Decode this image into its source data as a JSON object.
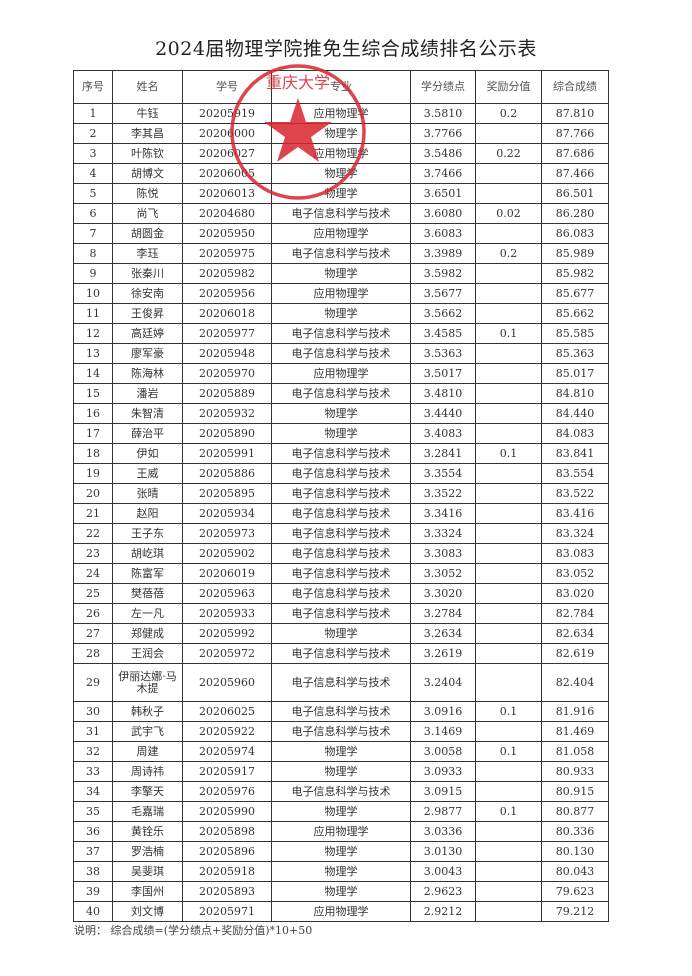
{
  "title": "2024届物理学院推免生综合成绩排名公示表",
  "headers": [
    "序号",
    "姓名",
    "学号",
    "专业",
    "学分绩点",
    "奖励分值",
    "综合成绩"
  ],
  "rows": [
    [
      "1",
      "牛钰",
      "20205919",
      "应用物理学",
      "3.5810",
      "0.2",
      "87.810"
    ],
    [
      "2",
      "李其昌",
      "20206000",
      "物理学",
      "3.7766",
      "",
      "87.766"
    ],
    [
      "3",
      "叶陈钦",
      "20206027",
      "应用物理学",
      "3.5486",
      "0.22",
      "87.686"
    ],
    [
      "4",
      "胡博文",
      "20206005",
      "物理学",
      "3.7466",
      "",
      "87.466"
    ],
    [
      "5",
      "陈悦",
      "20206013",
      "物理学",
      "3.6501",
      "",
      "86.501"
    ],
    [
      "6",
      "尚飞",
      "20204680",
      "电子信息科学与技术",
      "3.6080",
      "0.02",
      "86.280"
    ],
    [
      "7",
      "胡圆金",
      "20205950",
      "应用物理学",
      "3.6083",
      "",
      "86.083"
    ],
    [
      "8",
      "李珏",
      "20205975",
      "电子信息科学与技术",
      "3.3989",
      "0.2",
      "85.989"
    ],
    [
      "9",
      "张秦川",
      "20205982",
      "物理学",
      "3.5982",
      "",
      "85.982"
    ],
    [
      "10",
      "徐安南",
      "20205956",
      "应用物理学",
      "3.5677",
      "",
      "85.677"
    ],
    [
      "11",
      "王俊昇",
      "20206018",
      "物理学",
      "3.5662",
      "",
      "85.662"
    ],
    [
      "12",
      "高廷婷",
      "20205977",
      "电子信息科学与技术",
      "3.4585",
      "0.1",
      "85.585"
    ],
    [
      "13",
      "廖军豪",
      "20205948",
      "电子信息科学与技术",
      "3.5363",
      "",
      "85.363"
    ],
    [
      "14",
      "陈海林",
      "20205970",
      "应用物理学",
      "3.5017",
      "",
      "85.017"
    ],
    [
      "15",
      "潘岩",
      "20205889",
      "电子信息科学与技术",
      "3.4810",
      "",
      "84.810"
    ],
    [
      "16",
      "朱智清",
      "20205932",
      "物理学",
      "3.4440",
      "",
      "84.440"
    ],
    [
      "17",
      "薛治平",
      "20205890",
      "物理学",
      "3.4083",
      "",
      "84.083"
    ],
    [
      "18",
      "伊如",
      "20205991",
      "电子信息科学与技术",
      "3.2841",
      "0.1",
      "83.841"
    ],
    [
      "19",
      "王威",
      "20205886",
      "电子信息科学与技术",
      "3.3554",
      "",
      "83.554"
    ],
    [
      "20",
      "张晴",
      "20205895",
      "电子信息科学与技术",
      "3.3522",
      "",
      "83.522"
    ],
    [
      "21",
      "赵阳",
      "20205934",
      "电子信息科学与技术",
      "3.3416",
      "",
      "83.416"
    ],
    [
      "22",
      "王子东",
      "20205973",
      "电子信息科学与技术",
      "3.3324",
      "",
      "83.324"
    ],
    [
      "23",
      "胡屹琪",
      "20205902",
      "电子信息科学与技术",
      "3.3083",
      "",
      "83.083"
    ],
    [
      "24",
      "陈富军",
      "20206019",
      "电子信息科学与技术",
      "3.3052",
      "",
      "83.052"
    ],
    [
      "25",
      "樊蓓蓓",
      "20205963",
      "电子信息科学与技术",
      "3.3020",
      "",
      "83.020"
    ],
    [
      "26",
      "左一凡",
      "20205933",
      "电子信息科学与技术",
      "3.2784",
      "",
      "82.784"
    ],
    [
      "27",
      "郑健成",
      "20205992",
      "物理学",
      "3.2634",
      "",
      "82.634"
    ],
    [
      "28",
      "王润会",
      "20205972",
      "电子信息科学与技术",
      "3.2619",
      "",
      "82.619"
    ],
    [
      "29",
      "伊丽达娜·马木提",
      "20205960",
      "电子信息科学与技术",
      "3.2404",
      "",
      "82.404"
    ],
    [
      "30",
      "韩秋子",
      "20206025",
      "电子信息科学与技术",
      "3.0916",
      "0.1",
      "81.916"
    ],
    [
      "31",
      "武宇飞",
      "20205922",
      "电子信息科学与技术",
      "3.1469",
      "",
      "81.469"
    ],
    [
      "32",
      "周建",
      "20205974",
      "物理学",
      "3.0058",
      "0.1",
      "81.058"
    ],
    [
      "33",
      "周诗祎",
      "20205917",
      "物理学",
      "3.0933",
      "",
      "80.933"
    ],
    [
      "34",
      "李擎天",
      "20205976",
      "电子信息科学与技术",
      "3.0915",
      "",
      "80.915"
    ],
    [
      "35",
      "毛嘉瑞",
      "20205990",
      "物理学",
      "2.9877",
      "0.1",
      "80.877"
    ],
    [
      "36",
      "黄铨乐",
      "20205898",
      "应用物理学",
      "3.0336",
      "",
      "80.336"
    ],
    [
      "37",
      "罗浩楠",
      "20205896",
      "物理学",
      "3.0130",
      "",
      "80.130"
    ],
    [
      "38",
      "吴斐琪",
      "20205918",
      "物理学",
      "3.0043",
      "",
      "80.043"
    ],
    [
      "39",
      "李国州",
      "20205893",
      "物理学",
      "2.9623",
      "",
      "79.623"
    ],
    [
      "40",
      "刘文博",
      "20205971",
      "应用物理学",
      "2.9212",
      "",
      "79.212"
    ]
  ],
  "note": "说明：  综合成绩=(学分绩点+奖励分值)*10+50",
  "stamp": {
    "text": "重庆大学",
    "color": "#d8242c"
  }
}
